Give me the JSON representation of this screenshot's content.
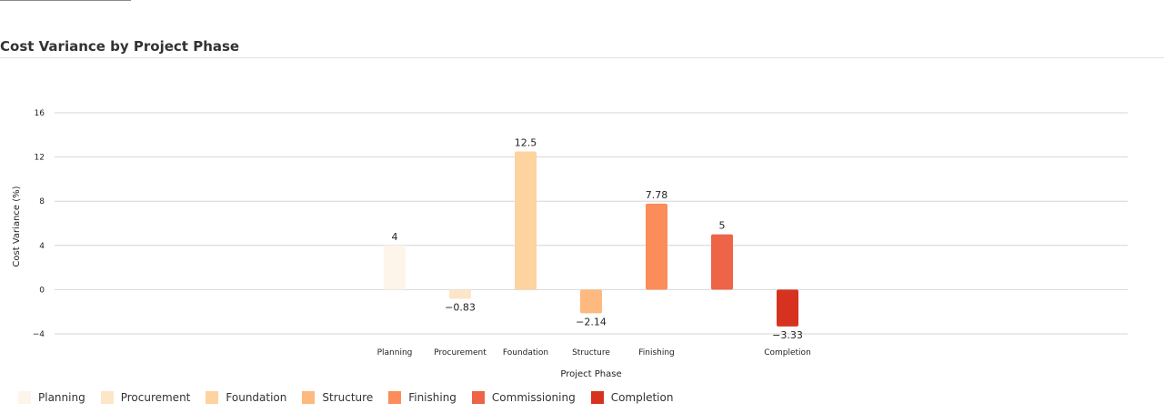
{
  "title": "Cost Variance by Project Phase",
  "chart_data": {
    "type": "bar",
    "title": "Cost Variance by Project Phase",
    "xlabel": "Project Phase",
    "ylabel": "Cost Variance (%)",
    "ylim": [
      -4,
      16
    ],
    "yticks": [
      -4,
      0,
      4,
      8,
      12,
      16
    ],
    "ytick_labels": [
      "−4",
      "0",
      "4",
      "8",
      "12",
      "16"
    ],
    "grid": true,
    "legend_position": "bottom-left",
    "categories": [
      "Planning",
      "Procurement",
      "Foundation",
      "Structure",
      "Finishing",
      "Commissioning",
      "Completion"
    ],
    "tick_labels": [
      "Planning",
      "Procurement",
      "Foundation",
      "Structure",
      "Finishing",
      "",
      "Completion"
    ],
    "values": [
      4,
      -0.83,
      12.5,
      -2.14,
      7.78,
      5,
      -3.33
    ],
    "data_labels": [
      "4",
      "−0.83",
      "12.5",
      "−2.14",
      "7.78",
      "5",
      "−3.33"
    ],
    "colors": [
      "#fdf5ea",
      "#fde6c8",
      "#fdd3a0",
      "#fdb97f",
      "#fc8c59",
      "#ed6446",
      "#d73220"
    ]
  }
}
